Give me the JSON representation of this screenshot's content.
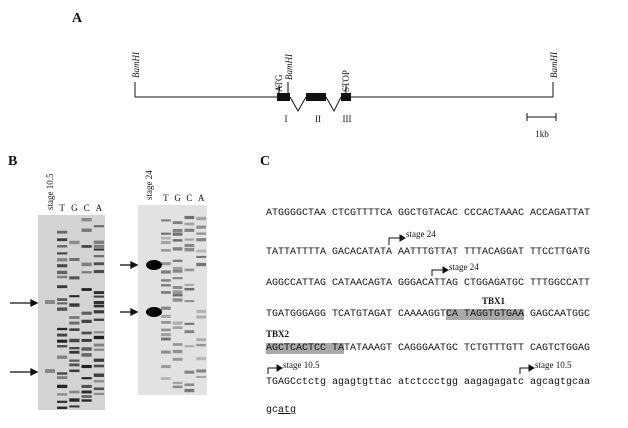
{
  "panel_a": {
    "label": "A",
    "sites": [
      "BamHI",
      "BamHI",
      "BamHI"
    ],
    "atg": "ATG",
    "stop": "STOP",
    "exons": [
      "I",
      "II",
      "III"
    ],
    "scale": "1kb"
  },
  "panel_b": {
    "label": "B",
    "gels": [
      {
        "stage": "stage 10.5",
        "lanes": [
          "T",
          "G",
          "C",
          "A"
        ]
      },
      {
        "stage": "stage 24",
        "lanes": [
          "T",
          "G",
          "C",
          "A"
        ]
      }
    ]
  },
  "panel_c": {
    "label": "C",
    "lines": [
      {
        "segments": [
          {
            "text": "ATGGGGCTAA CTCGTTTTCA GGCTGTACAC CCCACTAAAC ACCAGATTAT"
          }
        ]
      },
      {
        "segments": [
          {
            "text": "TATTATTTTA GACACATATA AATTTGTTAT TTTACAGGAT TTCCTTGATG"
          }
        ]
      },
      {
        "segments": [
          {
            "text": "AGGCCATTAG CATAACAGTA GGGACATTAG CTGGAGATGC TTTGGCCATT"
          }
        ]
      },
      {
        "segments": [
          {
            "text": "TGATGGGAGG TCATGTAGAT CAAAAGGT"
          },
          {
            "text": "CA TAGGTGTGAA",
            "highlight": true
          },
          {
            "text": " GAGCAATGGC"
          }
        ]
      },
      {
        "segments": [
          {
            "text": "AGCTCACTCC TA",
            "highlight": true
          },
          {
            "text": "TATAAAGT CAGGGAATGC TCTGTTTGTT CAGTCTGGAG"
          }
        ]
      },
      {
        "segments": [
          {
            "text": "TGAGCctctg agagtgttac atctccctgg aagagagatc agcagtgcaa"
          }
        ]
      },
      {
        "segments": [
          {
            "text": "gc"
          },
          {
            "text": "atg",
            "underline": true
          }
        ]
      }
    ],
    "boxes": [
      "TBX1",
      "TBX2"
    ],
    "starts": [
      "stage 24",
      "stage 24",
      "stage 10.5",
      "stage 10.5"
    ]
  }
}
